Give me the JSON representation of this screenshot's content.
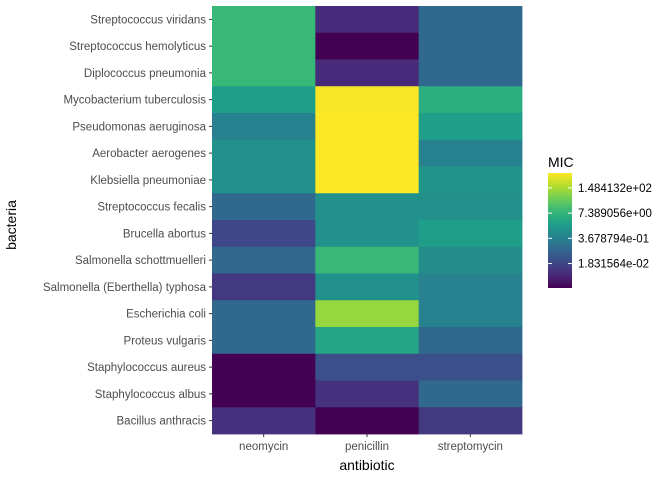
{
  "chart_data": {
    "type": "heatmap",
    "xlabel": "antibiotic",
    "ylabel": "bacteria",
    "x_categories": [
      "neomycin",
      "penicillin",
      "streptomycin"
    ],
    "y_categories": [
      "Streptococcus viridans",
      "Streptococcus hemolyticus",
      "Diplococcus pneumonia",
      "Mycobacterium tuberculosis",
      "Pseudomonas aeruginosa",
      "Aerobacter aerogenes",
      "Klebsiella pneumoniae",
      "Streptococcus fecalis",
      "Brucella abortus",
      "Salmonella schottmuelleri",
      "Salmonella (Eberthella) typhosa",
      "Escherichia coli",
      "Proteus vulgaris",
      "Staphylococcus aureus",
      "Staphylococcus albus",
      "Bacillus anthracis"
    ],
    "values": [
      [
        10,
        0.005,
        0.1
      ],
      [
        10,
        0.001,
        0.1
      ],
      [
        10,
        0.005,
        0.1
      ],
      [
        2,
        800,
        5
      ],
      [
        0.4,
        850,
        2
      ],
      [
        1,
        870,
        0.4
      ],
      [
        1,
        850,
        1.2
      ],
      [
        0.1,
        1,
        1
      ],
      [
        0.02,
        1,
        2
      ],
      [
        0.09,
        10,
        0.8
      ],
      [
        0.01,
        1,
        0.4
      ],
      [
        0.1,
        100,
        0.4
      ],
      [
        0.1,
        3,
        0.1
      ],
      [
        0.001,
        0.03,
        0.03
      ],
      [
        0.001,
        0.007,
        0.1
      ],
      [
        0.007,
        0.001,
        0.01
      ]
    ],
    "values_note_ignore": "",
    "legend": {
      "title": "MIC",
      "ticks": [
        {
          "label": "1.484132e+02",
          "value": 148.4132
        },
        {
          "label": "7.389056e+00",
          "value": 7.389056
        },
        {
          "label": "3.678794e-01",
          "value": 0.3678794
        },
        {
          "label": "1.831564e-02",
          "value": 0.01831564
        }
      ],
      "range": [
        0.001,
        870
      ],
      "scale": "log",
      "placement": "right"
    },
    "colormap": "viridis",
    "panel_background": "#ebebeb",
    "grid": true
  }
}
